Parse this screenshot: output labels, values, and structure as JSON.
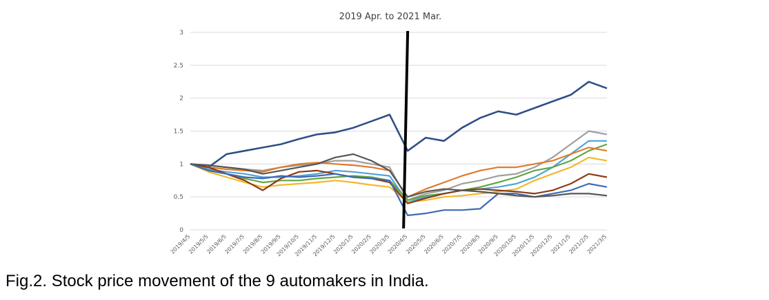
{
  "chart_data": {
    "type": "line",
    "title": "2019 Apr. to 2021 Mar.",
    "ylim": [
      0,
      3
    ],
    "yticks": [
      "0",
      "0.5",
      "1",
      "1.5",
      "2",
      "2.5",
      "3"
    ],
    "categories": [
      "2019/4/5",
      "2019/5/5",
      "2019/6/5",
      "2019/7/5",
      "2019/8/5",
      "2019/9/5",
      "2019/10/5",
      "2019/11/5",
      "2019/12/5",
      "2020/1/5",
      "2020/2/5",
      "2020/3/5",
      "2020/4/5",
      "2020/5/5",
      "2020/6/5",
      "2020/7/5",
      "2020/8/5",
      "2020/9/5",
      "2020/10/5",
      "2020/11/5",
      "2020/12/5",
      "2021/1/5",
      "2021/2/5",
      "2021/3/5"
    ],
    "grid": true,
    "legend": "none",
    "marker_line_category": "2020/4/5",
    "series": [
      {
        "color": "#2e4f85",
        "values": [
          1.0,
          0.95,
          1.15,
          1.2,
          1.25,
          1.3,
          1.38,
          1.45,
          1.48,
          1.55,
          1.65,
          1.75,
          1.2,
          1.4,
          1.35,
          1.55,
          1.7,
          1.8,
          1.75,
          1.85,
          1.95,
          2.05,
          2.25,
          2.15
        ]
      },
      {
        "color": "#9e9e9e",
        "values": [
          1.0,
          0.98,
          0.95,
          0.92,
          0.9,
          0.95,
          0.98,
          1.0,
          1.05,
          1.05,
          1.0,
          0.95,
          0.45,
          0.55,
          0.6,
          0.7,
          0.75,
          0.82,
          0.85,
          0.95,
          1.1,
          1.3,
          1.5,
          1.45
        ]
      },
      {
        "color": "#4ea3d9",
        "values": [
          1.0,
          0.92,
          0.88,
          0.85,
          0.8,
          0.8,
          0.82,
          0.85,
          0.9,
          0.88,
          0.85,
          0.82,
          0.42,
          0.5,
          0.55,
          0.6,
          0.62,
          0.65,
          0.7,
          0.8,
          0.95,
          1.15,
          1.35,
          1.35
        ]
      },
      {
        "color": "#5fa640",
        "values": [
          1.0,
          0.9,
          0.85,
          0.78,
          0.72,
          0.75,
          0.75,
          0.78,
          0.8,
          0.82,
          0.8,
          0.75,
          0.45,
          0.52,
          0.55,
          0.6,
          0.65,
          0.72,
          0.8,
          0.9,
          0.95,
          1.05,
          1.2,
          1.3
        ]
      },
      {
        "color": "#e07a2a",
        "values": [
          1.0,
          0.95,
          0.92,
          0.9,
          0.88,
          0.95,
          1.0,
          1.02,
          1.0,
          0.98,
          0.95,
          0.9,
          0.5,
          0.62,
          0.72,
          0.82,
          0.9,
          0.95,
          0.95,
          1.0,
          1.05,
          1.15,
          1.25,
          1.2
        ]
      },
      {
        "color": "#f2b72e",
        "values": [
          1.0,
          0.88,
          0.8,
          0.72,
          0.65,
          0.68,
          0.7,
          0.72,
          0.75,
          0.72,
          0.68,
          0.65,
          0.42,
          0.45,
          0.5,
          0.52,
          0.55,
          0.58,
          0.62,
          0.75,
          0.85,
          0.95,
          1.1,
          1.05
        ]
      },
      {
        "color": "#8b3a14",
        "values": [
          1.0,
          0.95,
          0.85,
          0.75,
          0.6,
          0.78,
          0.88,
          0.9,
          0.85,
          0.8,
          0.78,
          0.72,
          0.4,
          0.48,
          0.55,
          0.6,
          0.62,
          0.6,
          0.58,
          0.55,
          0.6,
          0.7,
          0.85,
          0.8
        ]
      },
      {
        "color": "#3f69b5",
        "values": [
          1.0,
          0.9,
          0.85,
          0.8,
          0.78,
          0.82,
          0.8,
          0.82,
          0.85,
          0.8,
          0.78,
          0.75,
          0.22,
          0.25,
          0.3,
          0.3,
          0.32,
          0.55,
          0.55,
          0.5,
          0.55,
          0.6,
          0.7,
          0.65
        ]
      },
      {
        "color": "#555555",
        "values": [
          1.0,
          0.98,
          0.95,
          0.92,
          0.85,
          0.9,
          0.95,
          1.0,
          1.1,
          1.15,
          1.05,
          0.9,
          0.5,
          0.58,
          0.62,
          0.6,
          0.58,
          0.55,
          0.52,
          0.5,
          0.52,
          0.55,
          0.55,
          0.52
        ]
      }
    ]
  },
  "caption": "Fig.2. Stock price movement of the 9 automakers in India."
}
